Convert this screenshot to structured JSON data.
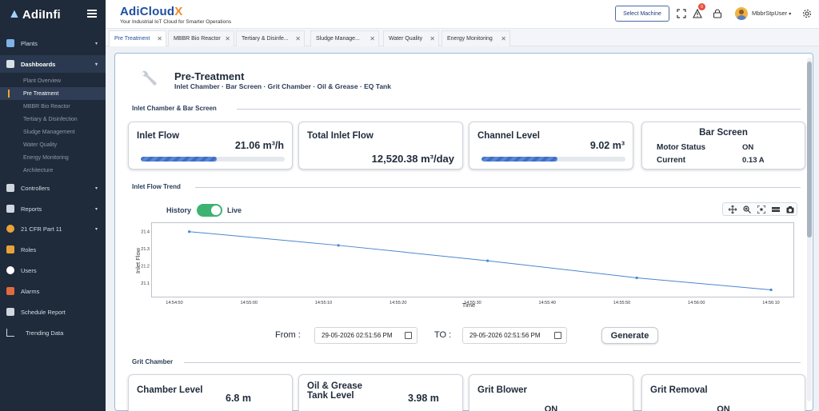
{
  "app": {
    "logo_text": "AdiInfi",
    "brand_name": "AdiCloud",
    "brand_x": "X",
    "brand_tagline": "Your Industrial IoT Cloud for Smarter Operations"
  },
  "sidebar": {
    "items": [
      {
        "label": "Plants",
        "icon": "plant-icon"
      },
      {
        "label": "Dashboards",
        "icon": "dashboard-icon"
      },
      {
        "label": "Controllers",
        "icon": "controller-icon"
      },
      {
        "label": "Reports",
        "icon": "report-icon"
      },
      {
        "label": "21 CFR Part 11",
        "icon": "cfr-icon"
      },
      {
        "label": "Roles",
        "icon": "roles-icon"
      },
      {
        "label": "Users",
        "icon": "users-icon"
      },
      {
        "label": "Alarms",
        "icon": "alarm-icon"
      },
      {
        "label": "Schedule Report",
        "icon": "schedule-icon"
      },
      {
        "label": "Trending Data",
        "icon": "trend-icon"
      }
    ],
    "dashboard_sub": [
      "Plant Overview",
      "Pre Treatment",
      "MBBR Bio Reactor",
      "Tertiary & Disinfection",
      "Sludge Management",
      "Water Quality",
      "Energy Monitoring",
      "Architecture"
    ]
  },
  "header": {
    "select_machine": "Select Machine",
    "alert_count": "0",
    "user_name": "MbbrStpUser"
  },
  "tabs": [
    {
      "label": "Pre Treatment"
    },
    {
      "label": "MBBR Bio Reactor"
    },
    {
      "label": "Tertiary & Disinfe..."
    },
    {
      "label": "Sludge Manage..."
    },
    {
      "label": "Water Quality"
    },
    {
      "label": "Energy Monitoring"
    }
  ],
  "page": {
    "title": "Pre-Treatment",
    "subtitle": "Inlet Chamber · Bar Screen · Grit Chamber · Oil & Grease · EQ Tank"
  },
  "inlet_section": {
    "title": "Inlet Chamber & Bar Screen",
    "inlet_flow": {
      "label": "Inlet Flow",
      "value": "21.06 m³/h",
      "level": 0.53
    },
    "total_inlet_flow": {
      "label": "Total Inlet Flow",
      "value": "12,520.38 m³/day"
    },
    "channel_level": {
      "label": "Channel Level",
      "value": "9.02 m³",
      "level": 0.53
    },
    "bar_screen": {
      "title": "Bar Screen",
      "motor_status_label": "Motor Status",
      "motor_status_value": "ON",
      "current_label": "Current",
      "current_value": "0.13 A"
    }
  },
  "trend_section": {
    "title": "Inlet Flow Trend",
    "toggle_left": "History",
    "toggle_right": "Live",
    "from_label": "From :",
    "to_label": "TO :",
    "from_value": "29-05-2026 02:51:56 PM",
    "to_value": "29-05-2026 02:51:56 PM",
    "generate_label": "Generate"
  },
  "chart_data": {
    "type": "line",
    "xlabel": "Time",
    "ylabel": "Inlet Flow",
    "x_ticks": [
      "14:54:50",
      "14:55:00",
      "14:55:10",
      "14:55:20",
      "14:55:30",
      "14:55:40",
      "14:55:50",
      "14:56:00",
      "14:56:10"
    ],
    "y_ticks": [
      "21.1",
      "21.2",
      "21.3",
      "21.4"
    ],
    "xlim_seconds": [
      -3,
      83
    ],
    "ylim": [
      21.02,
      21.45
    ],
    "series": [
      {
        "x_seconds": [
          2,
          22,
          42,
          62,
          80
        ],
        "values": [
          21.4,
          21.32,
          21.23,
          21.13,
          21.06
        ]
      }
    ],
    "x_origin_label": "14:54:50",
    "grid": false,
    "color": "#4a86d0"
  },
  "grit_section": {
    "title": "Grit Chamber",
    "chamber_level": {
      "label": "Chamber Level",
      "value": "6.8 m"
    },
    "oil_grease": {
      "label_line1": "Oil & Grease",
      "label_line2": "Tank Level",
      "value": "3.98 m"
    },
    "grit_blower": {
      "label": "Grit Blower",
      "status": "ON"
    },
    "grit_removal": {
      "label": "Grit Removal",
      "status": "ON"
    }
  }
}
